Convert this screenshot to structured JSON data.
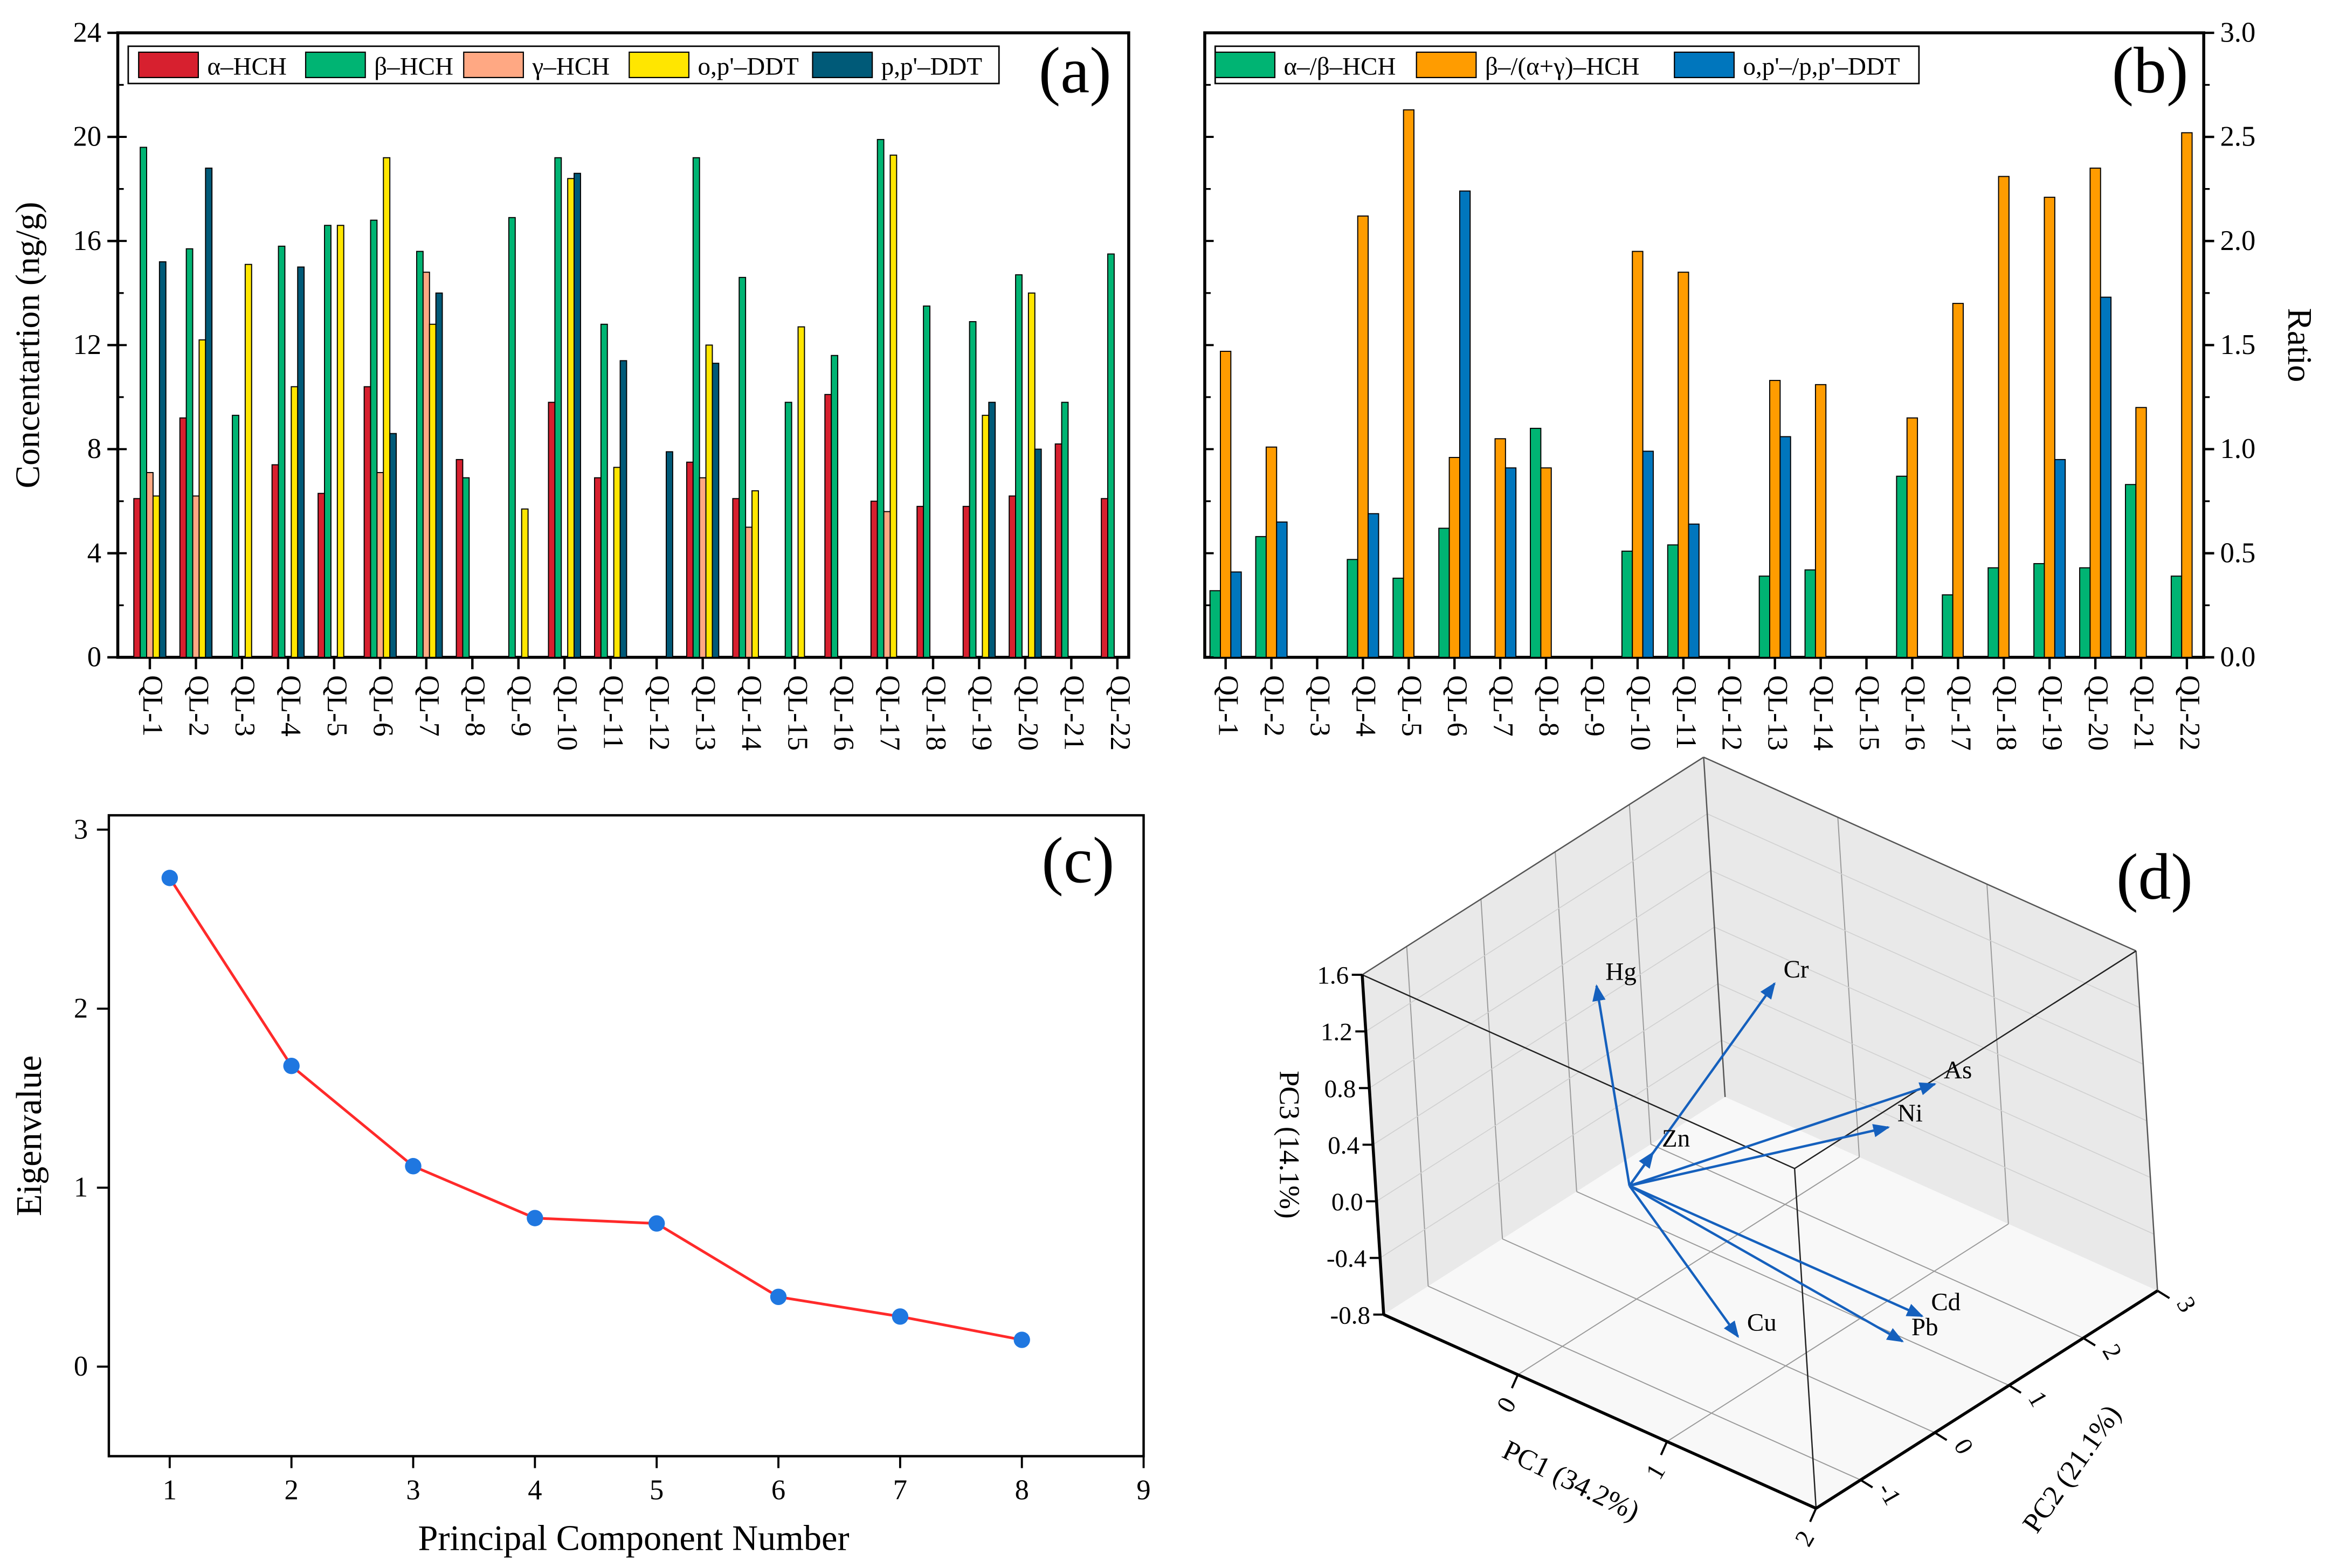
{
  "colors": {
    "a_series": [
      "#d7202f",
      "#00b473",
      "#ffa883",
      "#ffe600",
      "#005a78"
    ],
    "b_series": [
      "#00b473",
      "#ff9c00",
      "#0076bd"
    ],
    "c_line": "#ff2a2a",
    "c_point": "#1f77e0",
    "d_arrow": "#1560bd",
    "d_wall": "#e9e9e9",
    "d_floor": "#f8f8f8"
  },
  "chart_data": [
    {
      "panel_label": "(a)",
      "type": "bar",
      "ylabel": "Concentartion (ng/g)",
      "xlabel": "",
      "ylim": [
        0,
        24
      ],
      "yticks": [
        "0",
        "4",
        "8",
        "12",
        "16",
        "20",
        "24"
      ],
      "legend_position": "top-left",
      "categories": [
        "QL-1",
        "QL-2",
        "QL-3",
        "QL-4",
        "QL-5",
        "QL-6",
        "QL-7",
        "QL-8",
        "QL-9",
        "QL-10",
        "QL-11",
        "QL-12",
        "QL-13",
        "QL-14",
        "QL-15",
        "QL-16",
        "QL-17",
        "QL-18",
        "QL-19",
        "QL-20",
        "QL-21",
        "QL-22"
      ],
      "series": [
        {
          "name": "α–HCH",
          "values": [
            6.1,
            9.2,
            null,
            7.4,
            6.3,
            10.4,
            null,
            7.6,
            null,
            9.8,
            6.9,
            null,
            7.5,
            6.1,
            null,
            10.1,
            6.0,
            5.8,
            5.8,
            6.2,
            8.2,
            6.1
          ]
        },
        {
          "name": "β–HCH",
          "values": [
            19.6,
            15.7,
            9.3,
            15.8,
            16.6,
            16.8,
            15.6,
            6.9,
            16.9,
            19.2,
            12.8,
            null,
            19.2,
            14.6,
            9.8,
            11.6,
            19.9,
            13.5,
            12.9,
            14.7,
            9.8,
            15.5
          ]
        },
        {
          "name": "γ–HCH",
          "values": [
            7.1,
            6.2,
            null,
            null,
            null,
            7.1,
            14.8,
            null,
            null,
            null,
            null,
            null,
            6.9,
            5.0,
            null,
            null,
            5.6,
            null,
            null,
            null,
            null,
            null
          ]
        },
        {
          "name": "o,p'–DDT",
          "values": [
            6.2,
            12.2,
            15.1,
            10.4,
            16.6,
            19.2,
            12.8,
            null,
            5.7,
            18.4,
            7.3,
            null,
            12.0,
            6.4,
            12.7,
            null,
            19.3,
            null,
            9.3,
            14.0,
            null,
            null
          ]
        },
        {
          "name": "p,p'–DDT",
          "values": [
            15.2,
            18.8,
            null,
            15.0,
            null,
            8.6,
            14.0,
            null,
            null,
            18.6,
            11.4,
            7.9,
            11.3,
            null,
            null,
            null,
            null,
            null,
            9.8,
            8.0,
            null,
            null
          ]
        }
      ]
    },
    {
      "panel_label": "(b)",
      "type": "bar",
      "ylabel": "Ratio",
      "xlabel": "",
      "ylim": [
        0,
        3.0
      ],
      "yticks": [
        "0.0",
        "0.5",
        "1.0",
        "1.5",
        "2.0",
        "2.5",
        "3.0"
      ],
      "legend_position": "top-left",
      "categories": [
        "QL-1",
        "QL-2",
        "QL-3",
        "QL-4",
        "QL-5",
        "QL-6",
        "QL-7",
        "QL-8",
        "QL-9",
        "QL-10",
        "QL-11",
        "QL-12",
        "QL-13",
        "QL-14",
        "QL-15",
        "QL-16",
        "QL-17",
        "QL-18",
        "QL-19",
        "QL-20",
        "QL-21",
        "QL-22"
      ],
      "series": [
        {
          "name": "α–/β–HCH",
          "values": [
            0.32,
            0.58,
            null,
            0.47,
            0.38,
            0.62,
            null,
            1.1,
            null,
            0.51,
            0.54,
            null,
            0.39,
            0.42,
            null,
            0.87,
            0.3,
            0.43,
            0.45,
            0.43,
            0.83,
            0.39
          ]
        },
        {
          "name": "β–/(α+γ)–HCH",
          "values": [
            1.47,
            1.01,
            null,
            2.12,
            2.63,
            0.96,
            1.05,
            0.91,
            null,
            1.95,
            1.85,
            null,
            1.33,
            1.31,
            null,
            1.15,
            1.7,
            2.31,
            2.21,
            2.35,
            1.2,
            2.52
          ]
        },
        {
          "name": "o,p'–/p,p'–DDT",
          "values": [
            0.41,
            0.65,
            null,
            0.69,
            null,
            2.24,
            0.91,
            null,
            null,
            0.99,
            0.64,
            null,
            1.06,
            null,
            null,
            null,
            null,
            null,
            0.95,
            1.73,
            null,
            null
          ]
        }
      ]
    },
    {
      "panel_label": "(c)",
      "type": "line",
      "xlabel": "Principal Component Number",
      "ylabel": "Eigenvalue",
      "xlim": [
        0.5,
        9
      ],
      "ylim": [
        -0.5,
        3.08
      ],
      "xticks": [
        "1",
        "2",
        "3",
        "4",
        "5",
        "6",
        "7",
        "8",
        "9"
      ],
      "yticks": [
        "0",
        "1",
        "2",
        "3"
      ],
      "x": [
        1,
        2,
        3,
        4,
        5,
        6,
        7,
        8
      ],
      "y": [
        2.73,
        1.68,
        1.12,
        0.83,
        0.8,
        0.39,
        0.28,
        0.15
      ]
    },
    {
      "panel_label": "(d)",
      "type": "scatter",
      "subtype": "3d-loading-vectors",
      "xlabel": "PC1 (34.2%)",
      "ylabel": "PC2 (21.1%)",
      "zlabel": "PC3 (14.1%)",
      "xlim": [
        -0.9,
        2
      ],
      "ylim": [
        -1.6,
        3
      ],
      "zlim": [
        -0.8,
        1.6
      ],
      "xticks": [
        "0",
        "1",
        "2"
      ],
      "yticks": [
        "-1",
        "0",
        "1",
        "2",
        "3"
      ],
      "zticks": [
        "-0.8",
        "-0.4",
        "0.0",
        "0.4",
        "0.8",
        "1.2",
        "1.6"
      ],
      "vectors": [
        {
          "name": "Hg",
          "pc1": -0.3,
          "pc2": 0.3,
          "pc3": 1.17
        },
        {
          "name": "Cr",
          "pc1": 0.45,
          "pc2": 1.2,
          "pc3": 1.24
        },
        {
          "name": "Zn",
          "pc1": 0.07,
          "pc2": 0.2,
          "pc3": 0.2
        },
        {
          "name": "As",
          "pc1": 0.82,
          "pc2": 2.5,
          "pc3": 0.27
        },
        {
          "name": "Ni",
          "pc1": 0.64,
          "pc2": 2.2,
          "pc3": -0.02
        },
        {
          "name": "Cd",
          "pc1": 1.43,
          "pc2": 1.0,
          "pc3": -0.58
        },
        {
          "name": "Pb",
          "pc1": 1.39,
          "pc2": 0.8,
          "pc3": -0.71
        },
        {
          "name": "Cu",
          "pc1": 0.95,
          "pc2": -0.5,
          "pc3": -0.45
        }
      ]
    }
  ]
}
